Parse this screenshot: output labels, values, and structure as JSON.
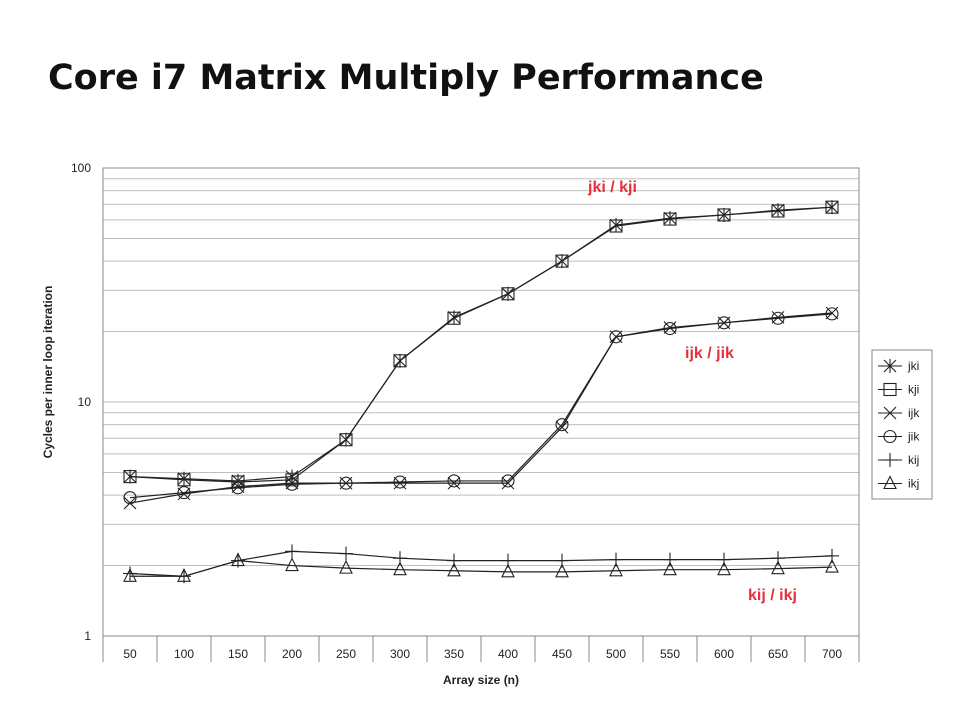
{
  "slide": {
    "title": "Core i7 Matrix Multiply Performance"
  },
  "chart_data": {
    "type": "line",
    "title": "",
    "xlabel": "Array size (n)",
    "ylabel": "Cycles per inner loop iteration",
    "yscale": "log",
    "ylim": [
      1,
      100
    ],
    "yticks": [
      1,
      10,
      100
    ],
    "grid": true,
    "legend": "right",
    "categories": [
      "50",
      "100",
      "150",
      "200",
      "250",
      "300",
      "350",
      "400",
      "450",
      "500",
      "550",
      "600",
      "650",
      "700"
    ],
    "series": [
      {
        "name": "jki",
        "marker": "asterisk",
        "values": [
          4.8,
          4.7,
          4.6,
          4.8,
          6.9,
          15.0,
          23.0,
          29.0,
          40.0,
          57.0,
          61.0,
          63.0,
          66.0,
          68.0
        ]
      },
      {
        "name": "kji",
        "marker": "square",
        "values": [
          4.8,
          4.65,
          4.55,
          4.65,
          6.9,
          15.0,
          22.8,
          29.0,
          40.0,
          56.5,
          60.5,
          63.0,
          65.5,
          68.0
        ]
      },
      {
        "name": "ijk",
        "marker": "x",
        "values": [
          3.7,
          4.05,
          4.35,
          4.5,
          4.5,
          4.5,
          4.5,
          4.5,
          7.8,
          19.0,
          20.8,
          21.8,
          23.0,
          24.0
        ]
      },
      {
        "name": "jik",
        "marker": "circle",
        "values": [
          3.9,
          4.1,
          4.3,
          4.45,
          4.5,
          4.55,
          4.6,
          4.6,
          8.0,
          19.0,
          20.6,
          21.8,
          22.8,
          23.8
        ]
      },
      {
        "name": "kij",
        "marker": "plus",
        "values": [
          1.85,
          1.8,
          2.1,
          2.3,
          2.25,
          2.15,
          2.1,
          2.1,
          2.1,
          2.12,
          2.12,
          2.12,
          2.15,
          2.2
        ]
      },
      {
        "name": "ikj",
        "marker": "triangle",
        "values": [
          1.8,
          1.8,
          2.1,
          2.0,
          1.95,
          1.92,
          1.9,
          1.88,
          1.88,
          1.9,
          1.92,
          1.92,
          1.94,
          1.97
        ]
      }
    ],
    "annotations": [
      {
        "text": "jki / kji",
        "color": "#e8303a"
      },
      {
        "text": "ijk / jik",
        "color": "#e8303a"
      },
      {
        "text": "kij / ikj",
        "color": "#e8303a"
      }
    ],
    "colors": {
      "line": "#222222",
      "grid": "#bfbfbf",
      "frame": "#888888"
    }
  }
}
